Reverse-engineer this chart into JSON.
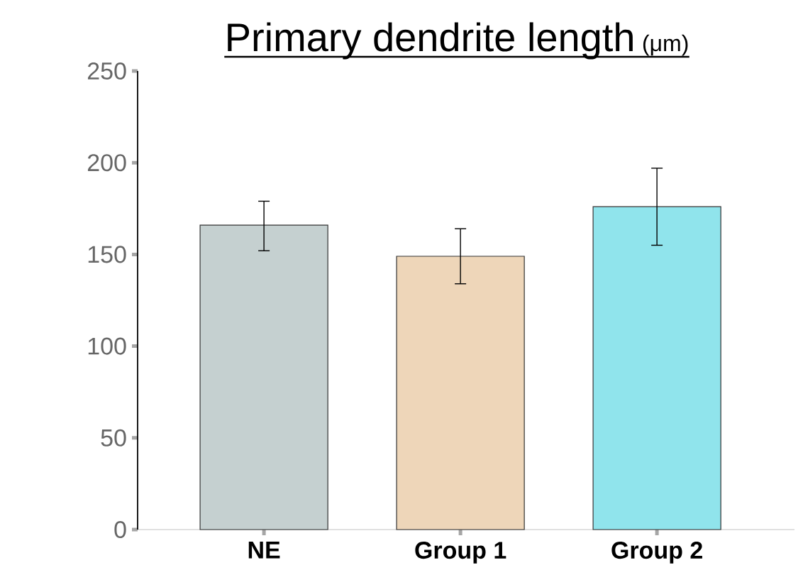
{
  "chart_data": {
    "type": "bar",
    "title": "Primary dendrite length",
    "ylabel": "(μm)",
    "categories": [
      "NE",
      "Group 1",
      "Group 2"
    ],
    "values": [
      166,
      149,
      176
    ],
    "colors": [
      "#c5d0d0",
      "#eed6b9",
      "#90e4ec"
    ],
    "errors": [
      [
        152,
        179
      ],
      [
        134,
        164
      ],
      [
        155,
        197
      ]
    ],
    "ylim": [
      0,
      250
    ],
    "yticks": [
      0,
      50,
      100,
      150,
      200,
      250
    ]
  }
}
